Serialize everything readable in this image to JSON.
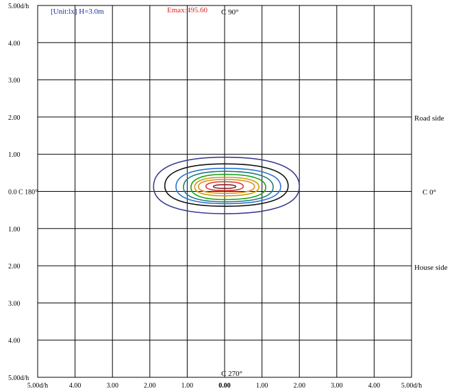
{
  "chart_data": {
    "type": "contour",
    "header": {
      "unit_label": "[Unit:lx]  H=3.0m",
      "emax_label": "Emax:495.60"
    },
    "x_ticks": [
      "5.00d/h",
      "4.00",
      "3.00",
      "2.00",
      "1.00",
      "0.00",
      "1.00",
      "2.00",
      "3.00",
      "4.00",
      "5.00d/h"
    ],
    "y_ticks_top_to_bottom": [
      "5.00d/h",
      "4.00",
      "3.00",
      "2.00",
      "1.00",
      "0.0 C 180°",
      "1.00",
      "2.00",
      "3.00",
      "4.00",
      "5.00d/h"
    ],
    "annotations": {
      "top": "C 90°",
      "bottom": "C 270°",
      "right": "C 0°",
      "road_side": "Road side",
      "house_side": "House side"
    },
    "xlim": [
      -5,
      5
    ],
    "ylim": [
      -5,
      5
    ],
    "grid": true,
    "colors": {
      "unit_label": "#1f2f9a",
      "emax_label": "#e02020",
      "grid": "#000000"
    },
    "contours": [
      {
        "color": "#3a3a8c",
        "x_left": -1.9,
        "x_right": 2.0,
        "y_top": 0.92,
        "y_bottom": -0.6,
        "x_center": 0.0
      },
      {
        "color": "#111111",
        "x_left": -1.6,
        "x_right": 1.7,
        "y_top": 0.74,
        "y_bottom": -0.4,
        "x_center": 0.0
      },
      {
        "color": "#2d72d2",
        "x_left": -1.3,
        "x_right": 1.5,
        "y_top": 0.62,
        "y_bottom": -0.33,
        "x_center": 0.0
      },
      {
        "color": "#1f7a7a",
        "x_left": -1.1,
        "x_right": 1.3,
        "y_top": 0.54,
        "y_bottom": -0.28,
        "x_center": 0.0
      },
      {
        "color": "#1aa01a",
        "x_left": -0.9,
        "x_right": 1.1,
        "y_top": 0.46,
        "y_bottom": -0.22,
        "x_center": 0.0
      },
      {
        "color": "#c8a000",
        "x_left": -0.8,
        "x_right": 0.92,
        "y_top": 0.38,
        "y_bottom": -0.12,
        "x_center": 0.0
      },
      {
        "color": "#e28a20",
        "x_left": -0.7,
        "x_right": 0.8,
        "y_top": 0.32,
        "y_bottom": -0.05,
        "x_center": 0.0
      },
      {
        "color": "#e03030",
        "x_left": -0.5,
        "x_right": 0.5,
        "y_top": 0.26,
        "y_bottom": 0.02,
        "x_center": 0.0
      },
      {
        "color": "#8b1a1a",
        "x_left": -0.3,
        "x_right": 0.3,
        "y_top": 0.18,
        "y_bottom": 0.08,
        "x_center": 0.0
      }
    ]
  }
}
